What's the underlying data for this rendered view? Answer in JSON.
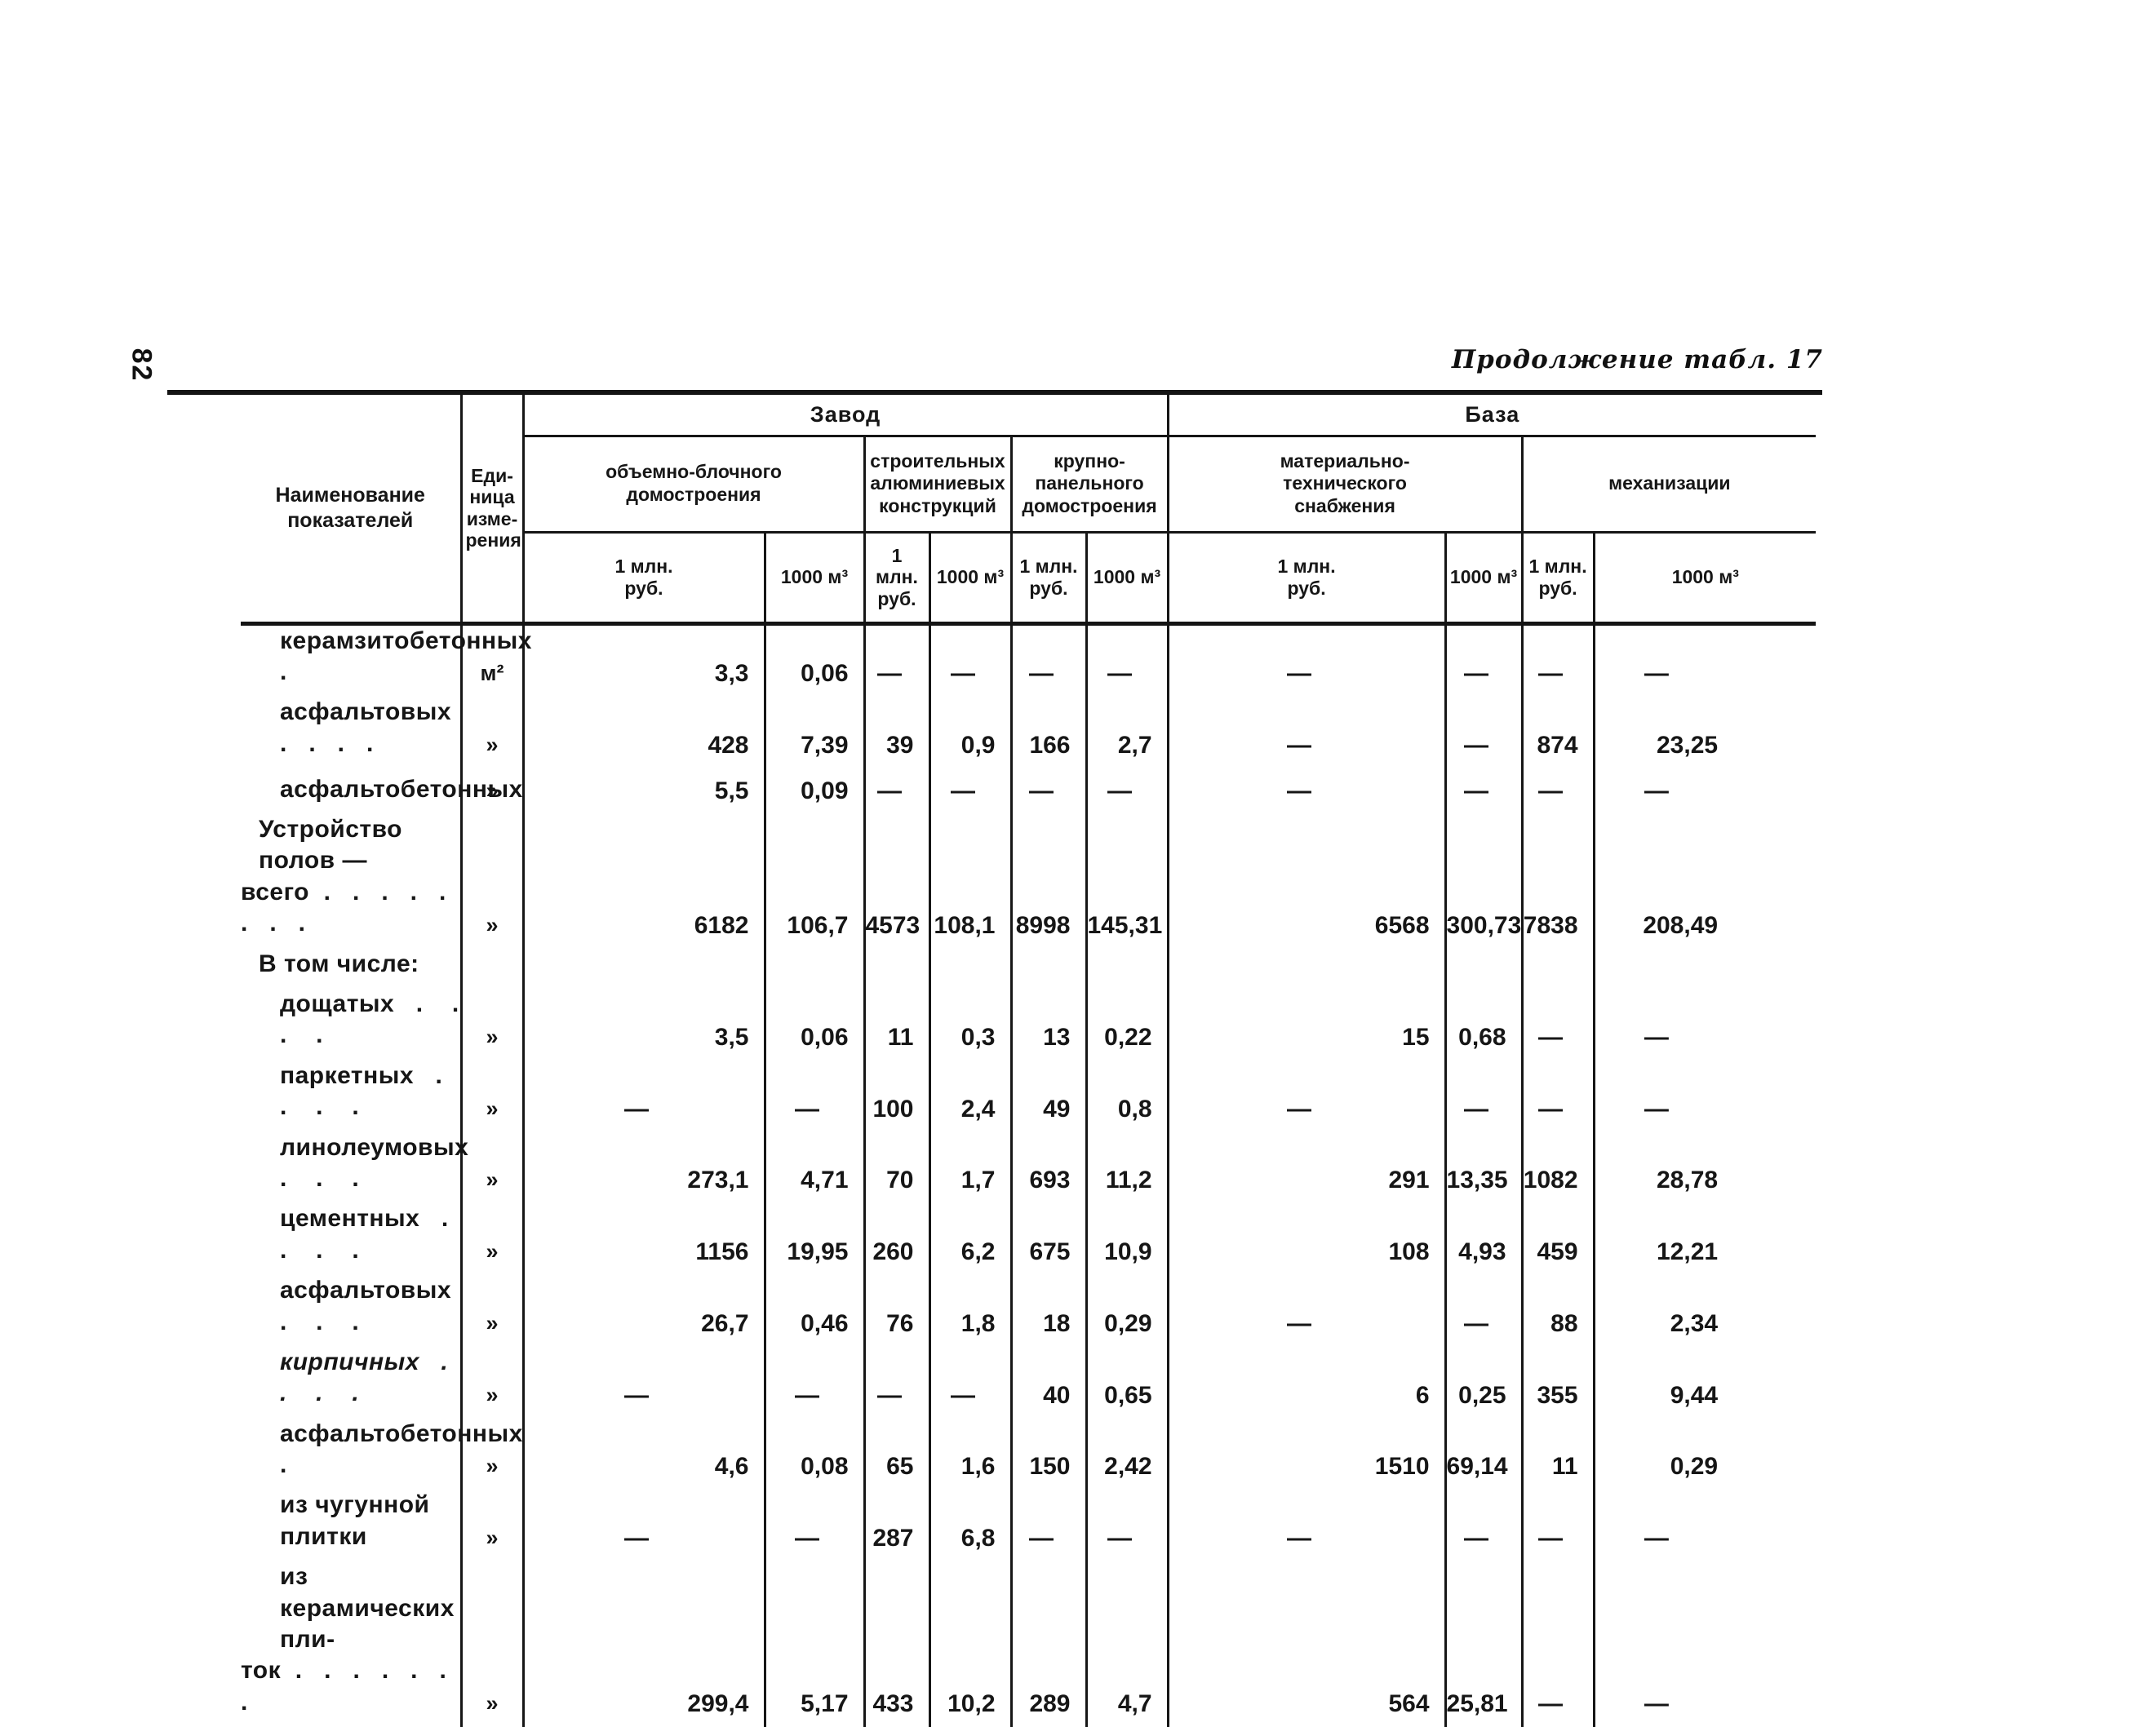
{
  "page": {
    "number": "82",
    "title": "Продолжение табл. 17"
  },
  "table": {
    "name_header": "Наименование\nпоказателей",
    "unit_header": "Еди-\nница\nизме-\nрения",
    "group_zavod": "Завод",
    "group_baza": "База",
    "sub_1": "объемно-блочного\nдомостроения",
    "sub_2": "строительных\nалюминиевых\nконструкций",
    "sub_3": "крупно-\nпанельного\nдомостроения",
    "sub_4": "материально-\nтехнического\nснабжения",
    "sub_5": "механизации",
    "u_rub": "1 млн.\nруб.",
    "u_m": "1000 м³",
    "rows": [
      {
        "label_lines": [
          {
            "t": "керамзитобетонных  .",
            "ind": 2
          }
        ],
        "unit": "м²",
        "v": [
          "3,3",
          "0,06",
          "—",
          "—",
          "—",
          "—",
          "—",
          "—",
          "—",
          "—"
        ]
      },
      {
        "label_lines": [
          {
            "t": "асфальтовых   .   .   .   .",
            "ind": 2
          }
        ],
        "unit": "»",
        "v": [
          "428",
          "7,39",
          "39",
          "0,9",
          "166",
          "2,7",
          "—",
          "—",
          "874",
          "23,25"
        ]
      },
      {
        "label_lines": [
          {
            "t": "асфальтобетонных",
            "ind": 2
          }
        ],
        "unit": "»",
        "v": [
          "5,5",
          "0,09",
          "—",
          "—",
          "—",
          "—",
          "—",
          "—",
          "—",
          "—"
        ]
      },
      {
        "label_lines": [
          {
            "t": "Устройство    полов —",
            "ind": 1
          },
          {
            "t": "всего  .   .   .   .   .   .   .   .",
            "ind": 0
          }
        ],
        "unit": "»",
        "tall": true,
        "v": [
          "6182",
          "106,7",
          "4573",
          "108,1",
          "8998",
          "145,31",
          "6568",
          "300,73",
          "7838",
          "208,49"
        ]
      },
      {
        "label_lines": [
          {
            "t": "В том числе:",
            "ind": 1
          }
        ],
        "unit": "",
        "small": true,
        "v": [
          "",
          "",
          "",
          "",
          "",
          "",
          "",
          "",
          "",
          ""
        ]
      },
      {
        "label_lines": [
          {
            "t": "дощатых   .    .    .    .",
            "ind": 2
          }
        ],
        "unit": "»",
        "v": [
          "3,5",
          "0,06",
          "11",
          "0,3",
          "13",
          "0,22",
          "15",
          "0,68",
          "—",
          "—"
        ]
      },
      {
        "label_lines": [
          {
            "t": "паркетных   .    .    .    .",
            "ind": 2
          }
        ],
        "unit": "»",
        "v": [
          "—",
          "—",
          "100",
          "2,4",
          "49",
          "0,8",
          "—",
          "—",
          "—",
          "—"
        ]
      },
      {
        "label_lines": [
          {
            "t": "линолеумовых   .    .    .",
            "ind": 2
          }
        ],
        "unit": "»",
        "v": [
          "273,1",
          "4,71",
          "70",
          "1,7",
          "693",
          "11,2",
          "291",
          "13,35",
          "1082",
          "28,78"
        ]
      },
      {
        "label_lines": [
          {
            "t": "цементных   .    .    .    .",
            "ind": 2
          }
        ],
        "unit": "»",
        "v": [
          "1156",
          "19,95",
          "260",
          "6,2",
          "675",
          "10,9",
          "108",
          "4,93",
          "459",
          "12,21"
        ]
      },
      {
        "label_lines": [
          {
            "t": "асфальтовых   .    .    .",
            "ind": 2
          }
        ],
        "unit": "»",
        "v": [
          "26,7",
          "0,46",
          "76",
          "1,8",
          "18",
          "0,29",
          "—",
          "—",
          "88",
          "2,34"
        ]
      },
      {
        "label_lines": [
          {
            "t": "кирпичных   .    .    .    .",
            "ind": 2
          }
        ],
        "unit": "»",
        "italic": true,
        "v": [
          "—",
          "—",
          "—",
          "—",
          "40",
          "0,65",
          "6",
          "0,25",
          "355",
          "9,44"
        ]
      },
      {
        "label_lines": [
          {
            "t": "асфальтобетонных   .",
            "ind": 2
          }
        ],
        "unit": "»",
        "v": [
          "4,6",
          "0,08",
          "65",
          "1,6",
          "150",
          "2,42",
          "1510",
          "69,14",
          "11",
          "0,29"
        ]
      },
      {
        "label_lines": [
          {
            "t": "из чугунной плитки",
            "ind": 2
          }
        ],
        "unit": "»",
        "v": [
          "—",
          "—",
          "287",
          "6,8",
          "—",
          "—",
          "—",
          "—",
          "—",
          "—"
        ]
      },
      {
        "label_lines": [
          {
            "t": "из керамических пли-",
            "ind": 2
          },
          {
            "t": "ток  .   .   .   .   .   .   .",
            "ind": 0
          }
        ],
        "unit": "»",
        "tall": true,
        "v": [
          "299,4",
          "5,17",
          "433",
          "10,2",
          "289",
          "4,7",
          "564",
          "25,81",
          "—",
          "—"
        ]
      }
    ]
  }
}
